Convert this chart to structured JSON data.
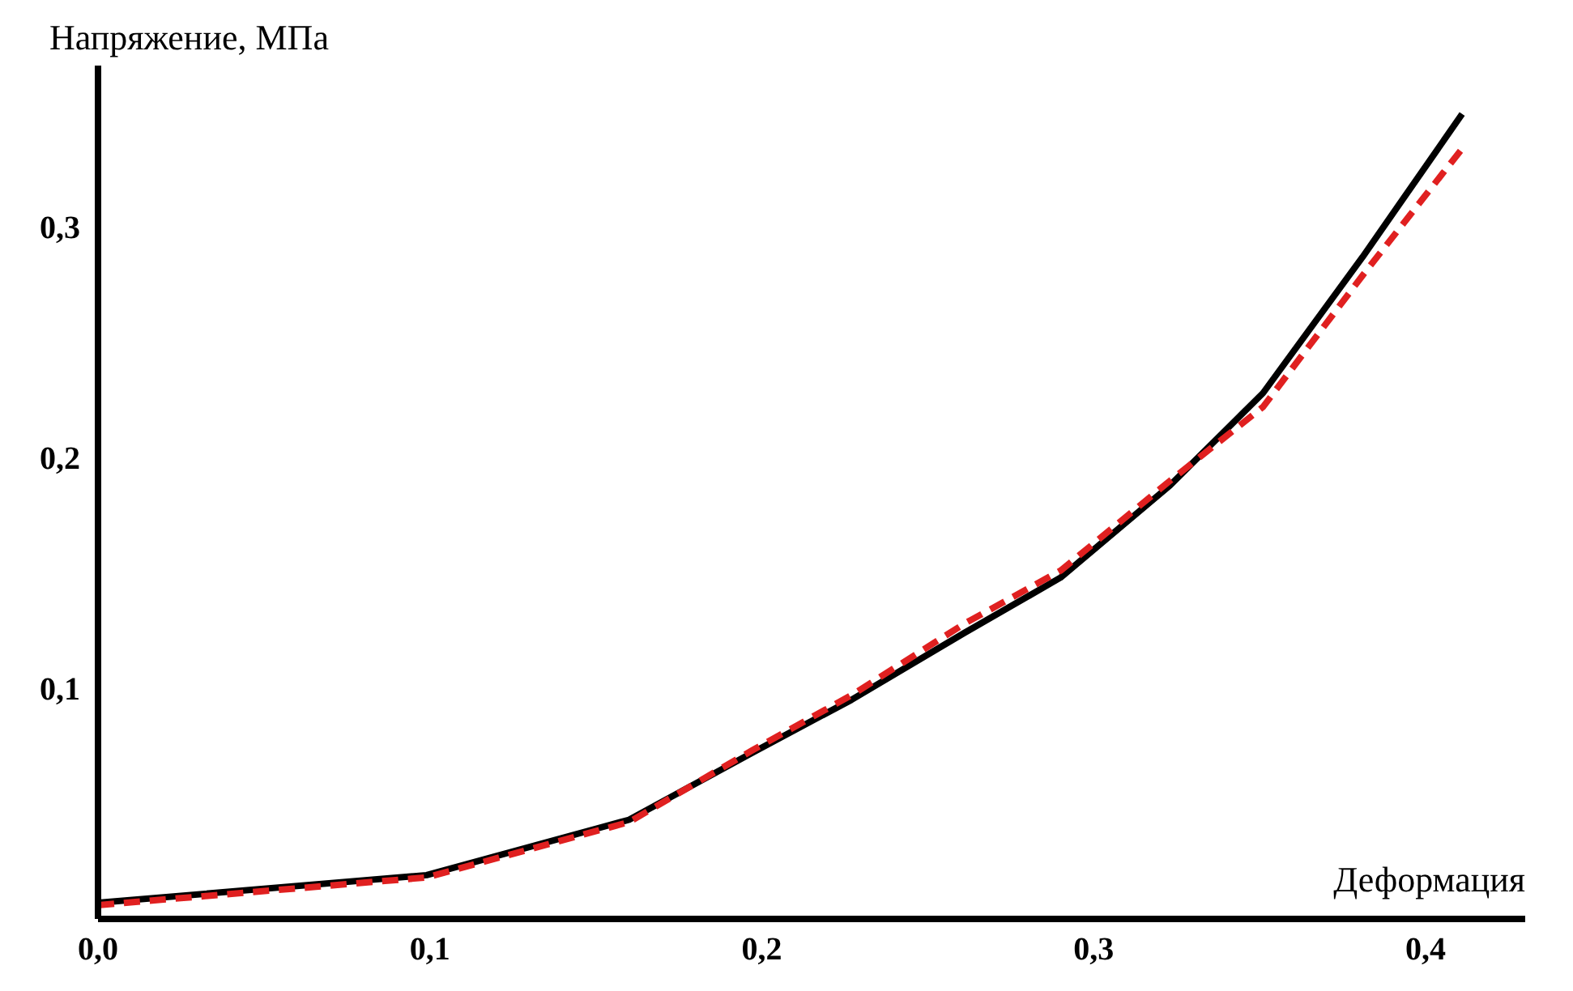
{
  "chart_data": {
    "type": "line",
    "xlabel": "Деформация",
    "ylabel": "Напряжение, МПа",
    "xlim": [
      0,
      0.43
    ],
    "ylim": [
      0,
      0.37
    ],
    "xticks": [
      {
        "value": 0,
        "label": "0,0"
      },
      {
        "value": 0.1,
        "label": "0,1"
      },
      {
        "value": 0.2,
        "label": "0,2"
      },
      {
        "value": 0.3,
        "label": "0,3"
      },
      {
        "value": 0.4,
        "label": "0,4"
      }
    ],
    "yticks": [
      {
        "value": 0.1,
        "label": "0,1"
      },
      {
        "value": 0.2,
        "label": "0,2"
      },
      {
        "value": 0.3,
        "label": "0,3"
      }
    ],
    "grid": false,
    "series": [
      {
        "color": "#000000",
        "line_style": "solid",
        "x": [
          0,
          0.099,
          0.16,
          0.197,
          0.227,
          0.261,
          0.29,
          0.323,
          0.351,
          0.381,
          0.411
        ],
        "values": [
          0.007,
          0.019,
          0.043,
          0.072,
          0.095,
          0.124,
          0.148,
          0.188,
          0.228,
          0.287,
          0.349
        ]
      },
      {
        "color": "#e02020",
        "line_style": "dashed",
        "x": [
          0,
          0.099,
          0.16,
          0.197,
          0.227,
          0.261,
          0.29,
          0.323,
          0.351,
          0.381,
          0.411
        ],
        "values": [
          0.006,
          0.018,
          0.042,
          0.073,
          0.097,
          0.128,
          0.151,
          0.19,
          0.222,
          0.279,
          0.334
        ]
      }
    ]
  }
}
